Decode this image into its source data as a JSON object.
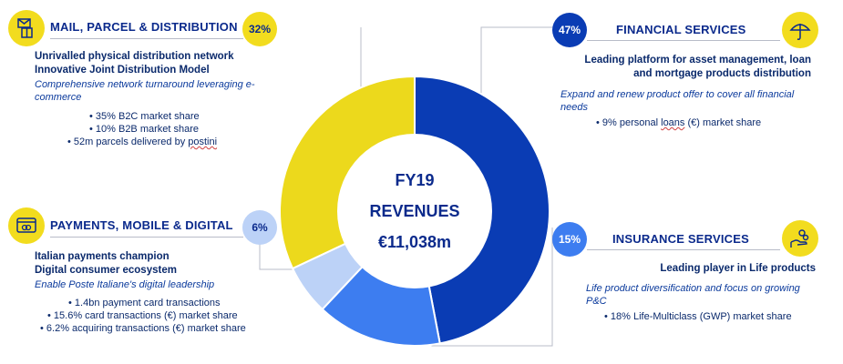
{
  "chart_data": {
    "type": "donut",
    "center": {
      "line1": "FY19",
      "line2": "REVENUES",
      "line3": "€11,038m"
    },
    "slices": [
      {
        "name": "FINANCIAL SERVICES",
        "value": 47,
        "label": "47%",
        "color": "#0a3cb4"
      },
      {
        "name": "INSURANCE SERVICES",
        "value": 15,
        "label": "15%",
        "color": "#3d7df0"
      },
      {
        "name": "PAYMENTS, MOBILE & DIGITAL",
        "value": 6,
        "label": "6%",
        "color": "#bcd2f7"
      },
      {
        "name": "MAIL, PARCEL & DISTRIBUTION",
        "value": 32,
        "label": "32%",
        "color": "#ecd91c"
      }
    ]
  },
  "mail": {
    "title": "MAIL, PARCEL & DISTRIBUTION",
    "icon": "parcel-icon",
    "bold_lines": [
      "Unrivalled physical distribution network",
      "Innovative Joint Distribution Model"
    ],
    "italic": "Comprehensive network turnaround leveraging e-commerce",
    "bullets": [
      "• 35% B2C market share",
      "• 10% B2B market share"
    ],
    "bullet3_prefix": "• 52m parcels delivered by ",
    "bullet3_word": "postini"
  },
  "payments": {
    "title": "PAYMENTS, MOBILE & DIGITAL",
    "icon": "card-icon",
    "bold_lines": [
      "Italian payments champion",
      "Digital consumer ecosystem"
    ],
    "italic": "Enable Poste Italiane's digital leadership",
    "bullets": [
      "• 1.4bn payment card transactions",
      "• 15.6% card transactions (€) market share",
      "• 6.2% acquiring transactions (€) market share"
    ]
  },
  "financial": {
    "title": "FINANCIAL SERVICES",
    "icon": "umbrella-icon",
    "bold_lines": [
      "Leading platform for asset management, loan",
      "and mortgage products distribution"
    ],
    "italic": "Expand and renew product offer to cover all financial needs",
    "bullet_prefix": "• 9% personal ",
    "bullet_word": "loans",
    "bullet_suffix": " (€) market share"
  },
  "insurance": {
    "title": "INSURANCE SERVICES",
    "icon": "hand-coins-icon",
    "bold_lines": [
      "Leading player in Life products"
    ],
    "italic": "Life product diversification and focus on growing P&C",
    "bullets": [
      "• 18% Life-Multiclass (GWP) market share"
    ]
  },
  "colors": {
    "navy": "#0b2a8c",
    "yellow": "#f2dc1e",
    "grey_line": "#b8bcc8"
  }
}
